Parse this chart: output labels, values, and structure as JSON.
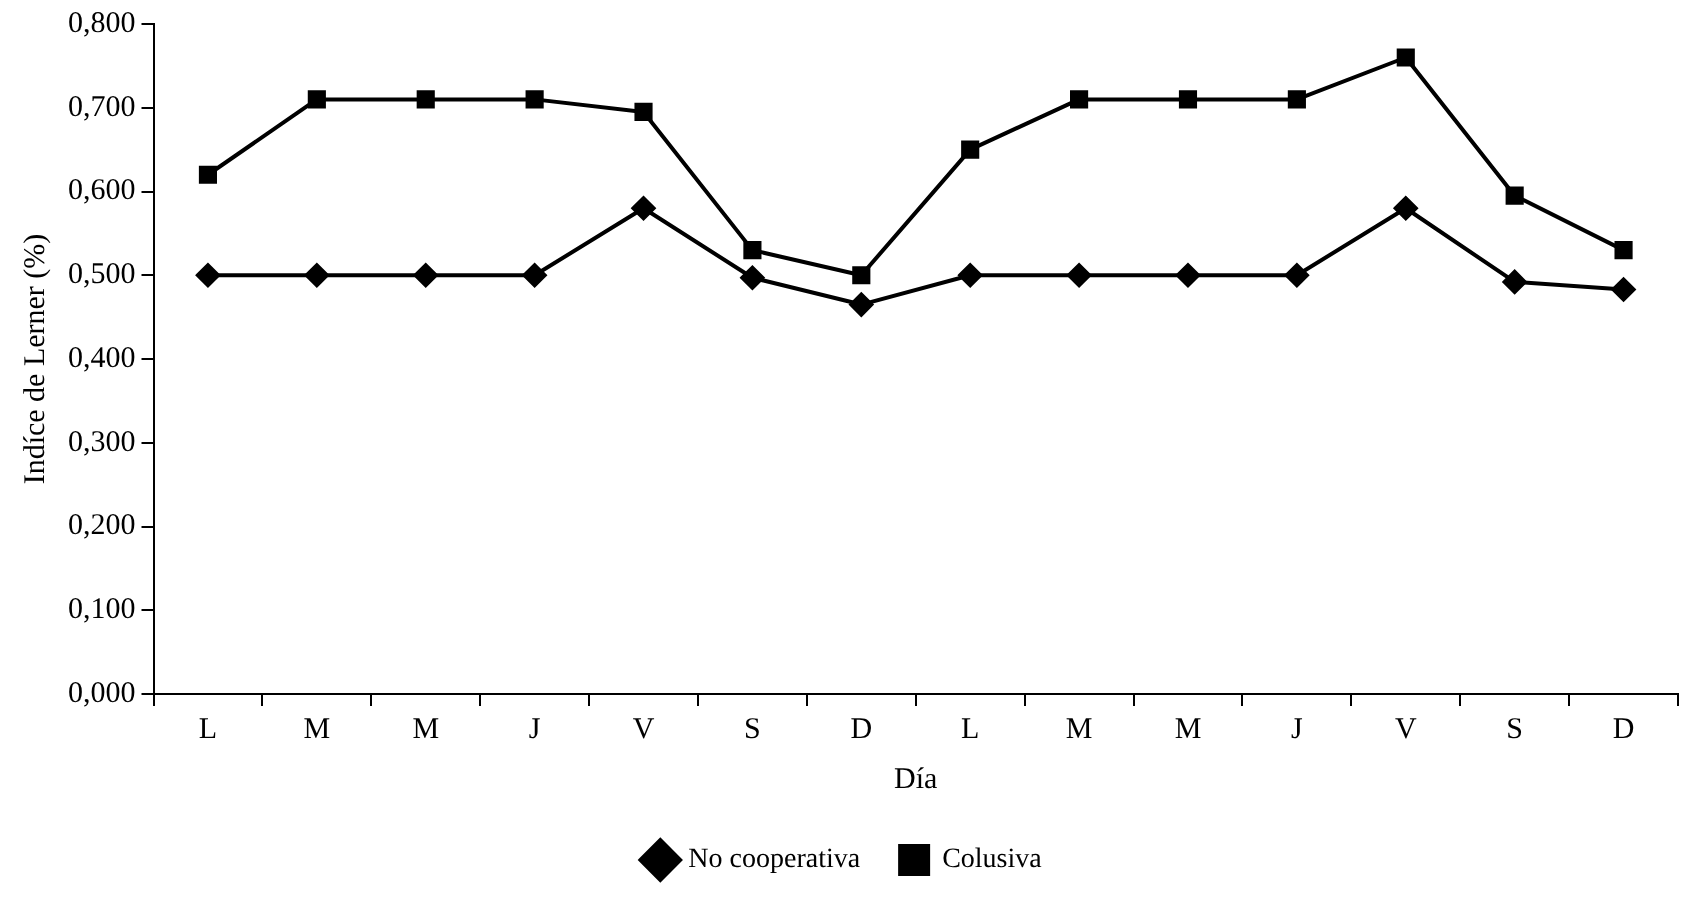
{
  "chart_data": {
    "type": "line",
    "xlabel": "Día",
    "ylabel": "Indíce de Lerner (%)",
    "categories": [
      "L",
      "M",
      "M",
      "J",
      "V",
      "S",
      "D",
      "L",
      "M",
      "M",
      "J",
      "V",
      "S",
      "D"
    ],
    "series": [
      {
        "name": "No cooperativa",
        "color": "#000000",
        "marker": "diamond",
        "values": [
          0.5,
          0.5,
          0.5,
          0.5,
          0.58,
          0.497,
          0.465,
          0.5,
          0.5,
          0.5,
          0.5,
          0.58,
          0.492,
          0.483
        ]
      },
      {
        "name": "Colusiva",
        "color": "#000000",
        "marker": "square",
        "values": [
          0.62,
          0.71,
          0.71,
          0.71,
          0.695,
          0.53,
          0.5,
          0.65,
          0.71,
          0.71,
          0.71,
          0.76,
          0.595,
          0.53
        ]
      }
    ],
    "ylim": [
      0,
      0.8
    ],
    "yticks": [
      {
        "value": 0,
        "label": "0,000"
      },
      {
        "value": 0.1,
        "label": "0,100"
      },
      {
        "value": 0.2,
        "label": "0,200"
      },
      {
        "value": 0.3,
        "label": "0,300"
      },
      {
        "value": 0.4,
        "label": "0,400"
      },
      {
        "value": 0.5,
        "label": "0,500"
      },
      {
        "value": 0.6,
        "label": "0,600"
      },
      {
        "value": 0.7,
        "label": "0,700"
      },
      {
        "value": 0.8,
        "label": "0,800"
      }
    ],
    "grid": false,
    "legend": "bottom",
    "line_style": "solid"
  }
}
